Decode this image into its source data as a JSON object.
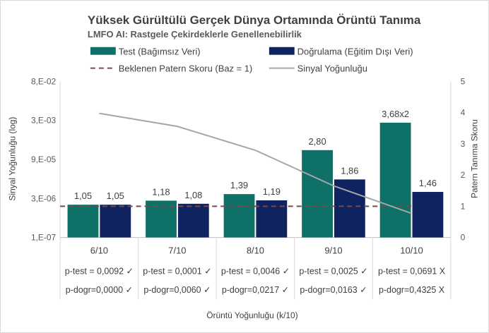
{
  "chart_data": {
    "type": "bar",
    "title": "Yüksek Gürültülü Gerçek Dünya Ortamında Örüntü Tanıma",
    "subtitle": "LMFO AI: Rastgele Çekirdeklerle Genellenebilirlik",
    "categories": [
      "6/10",
      "7/10",
      "8/10",
      "9/10",
      "10/10"
    ],
    "series": [
      {
        "name": "Test (Bağımsız Veri)",
        "type": "bar",
        "axis": "right",
        "color": "#0f7068",
        "values": [
          1.05,
          1.18,
          1.39,
          2.8,
          3.68
        ],
        "labels": [
          "1,05",
          "1,18",
          "1,39",
          "2,80",
          "3,68x2"
        ]
      },
      {
        "name": "Doğrulama (Eğitim Dışı Veri)",
        "type": "bar",
        "axis": "right",
        "color": "#0f2360",
        "values": [
          1.05,
          1.08,
          1.19,
          1.86,
          1.46
        ],
        "labels": [
          "1,05",
          "1,08",
          "1,19",
          "1,86",
          "1,46"
        ]
      },
      {
        "name": "Beklenen Patern Skoru (Baz = 1)",
        "type": "line",
        "axis": "right",
        "style": "dashed",
        "color": "#7a4a4a",
        "values": [
          1,
          1,
          1,
          1,
          1
        ]
      },
      {
        "name": "Sinyal Yoğunluğu",
        "type": "line",
        "axis": "left",
        "scale": "log",
        "color": "#a6a6a6",
        "values": [
          0.005,
          0.0016,
          0.0002,
          9e-06,
          8.18e-07
        ]
      }
    ],
    "xlabel": "Örüntü Yoğunluğu (k/10)",
    "ylabel_left": "Sinyal Yoğunluğu (log)",
    "ylabel_right": "Patern Tanıma Skoru",
    "y_left": {
      "scale": "log",
      "ticks": [
        "8,E-02",
        "3,E-03",
        "9,E-05",
        "3,E-06",
        "1,E-07"
      ]
    },
    "y_right": {
      "ylim": [
        0,
        5
      ],
      "ticks": [
        "0",
        "1",
        "2",
        "3",
        "4",
        "5"
      ]
    },
    "table_rows": [
      [
        "p-test = 0,0092 ✓",
        "p-test = 0,0001 ✓",
        "p-test = 0,0046 ✓",
        "p-test = 0,0025 ✓",
        "p-test = 0,0691 X"
      ],
      [
        "p-dogr=0,0000 ✓",
        "p-dogr=0,0060 ✓",
        "p-dogr=0,0217 ✓",
        "p-dogr=0,0163 ✓",
        "p-dogr=0,4325 X"
      ]
    ],
    "legend_position": "top",
    "grid": false
  },
  "colors": {
    "test": "#0f7068",
    "validation": "#0f2360",
    "baseline": "#7a4a4a",
    "signal": "#a6a6a6"
  }
}
